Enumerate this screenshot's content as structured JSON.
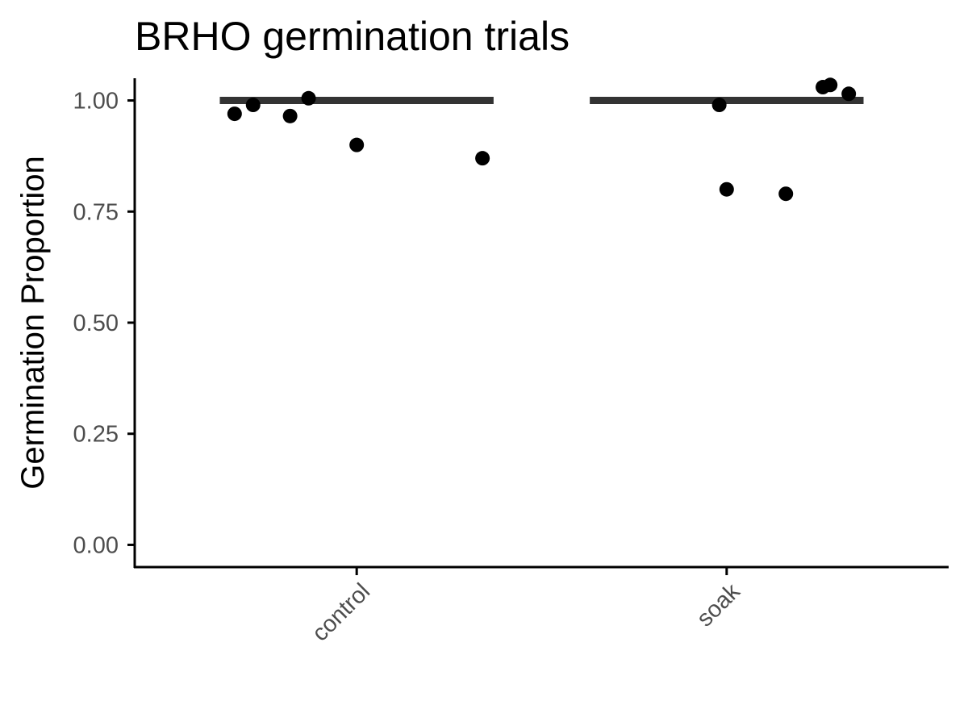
{
  "chart_data": {
    "type": "scatter",
    "title": "BRHO germination trials",
    "xlabel": "",
    "ylabel": "Germination Proportion",
    "categories": [
      "control",
      "soak"
    ],
    "y_ticks": [
      "0.00",
      "0.25",
      "0.50",
      "0.75",
      "1.00"
    ],
    "ylim": [
      -0.05,
      1.05
    ],
    "grid": false,
    "legend": "none",
    "points": [
      {
        "category": "control",
        "jitter": -0.33,
        "y": 0.97
      },
      {
        "category": "control",
        "jitter": -0.28,
        "y": 0.99
      },
      {
        "category": "control",
        "jitter": -0.18,
        "y": 0.965
      },
      {
        "category": "control",
        "jitter": -0.13,
        "y": 1.005
      },
      {
        "category": "control",
        "jitter": 0.0,
        "y": 0.9
      },
      {
        "category": "control",
        "jitter": 0.34,
        "y": 0.87
      },
      {
        "category": "soak",
        "jitter": -0.02,
        "y": 0.99
      },
      {
        "category": "soak",
        "jitter": 0.0,
        "y": 0.8
      },
      {
        "category": "soak",
        "jitter": 0.16,
        "y": 0.79
      },
      {
        "category": "soak",
        "jitter": 0.26,
        "y": 1.03
      },
      {
        "category": "soak",
        "jitter": 0.28,
        "y": 1.035
      },
      {
        "category": "soak",
        "jitter": 0.33,
        "y": 1.015
      }
    ],
    "summary_lines": [
      {
        "category": "control",
        "y": 1.0
      },
      {
        "category": "soak",
        "y": 1.0
      }
    ],
    "colors": {
      "point": "#000000",
      "summary": "#333333",
      "axis": "#000000",
      "tick_text": "#4d4d4d"
    }
  }
}
